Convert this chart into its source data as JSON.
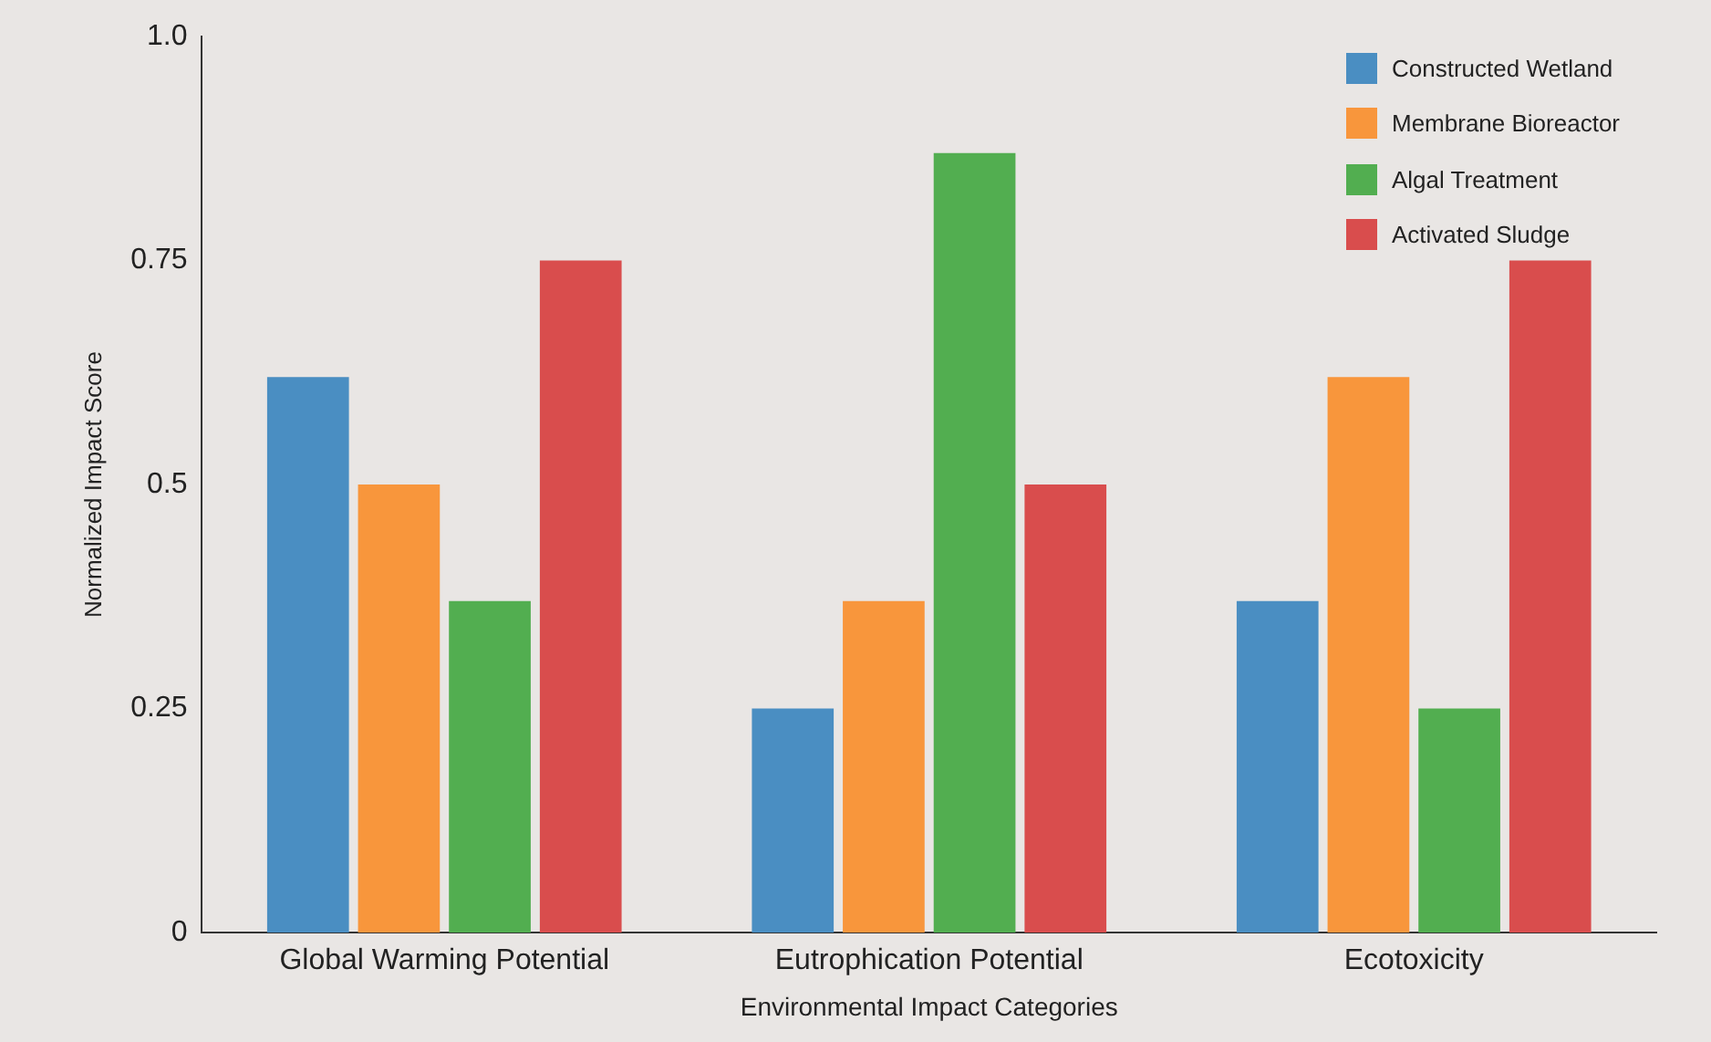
{
  "chart_data": {
    "type": "bar",
    "xlabel": "Environmental Impact Categories",
    "ylabel": "Normalized Impact Score",
    "categories": [
      "Global Warming Potential",
      "Eutrophication Potential",
      "Ecotoxicity"
    ],
    "series": [
      {
        "name": "Constructed Wetland",
        "color": "#4a8ec2",
        "values": [
          0.62,
          0.25,
          0.37
        ]
      },
      {
        "name": "Membrane Bioreactor",
        "color": "#f8963c",
        "values": [
          0.5,
          0.37,
          0.62
        ]
      },
      {
        "name": "Algal Treatment",
        "color": "#52ae50",
        "values": [
          0.37,
          0.87,
          0.25
        ]
      },
      {
        "name": "Activated Sludge",
        "color": "#d94d4d",
        "values": [
          0.75,
          0.5,
          0.75
        ]
      }
    ],
    "ylim": [
      0,
      1
    ],
    "yticks": [
      0,
      0.25,
      0.5,
      0.75,
      {
        "value": 1,
        "label": "1.0"
      }
    ],
    "grid": false,
    "legend": "top right"
  }
}
